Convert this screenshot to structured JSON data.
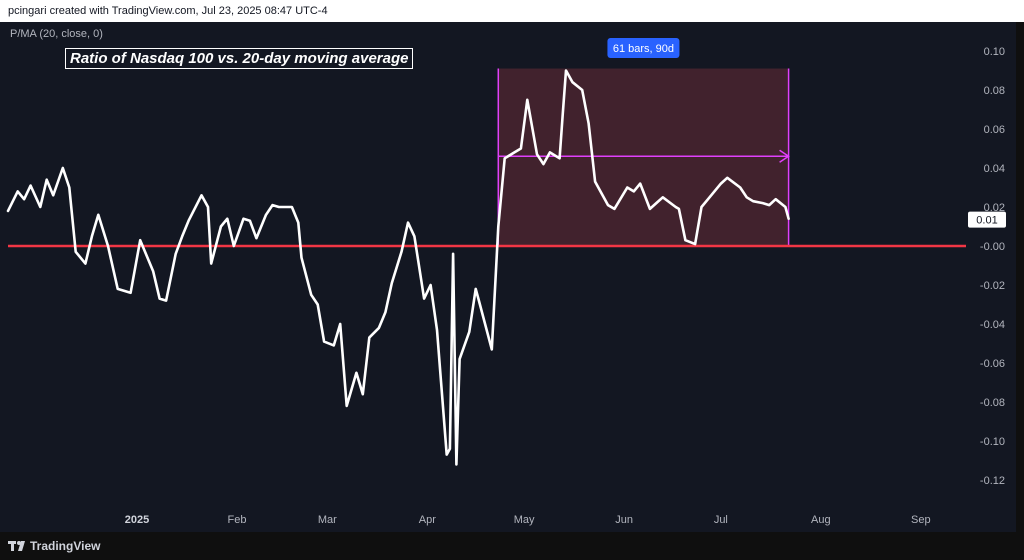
{
  "header": {
    "text": "pcingari created with TradingView.com, Jul 23, 2025 08:47 UTC-4"
  },
  "footer": {
    "brand": "TradingView"
  },
  "indicator": {
    "label": "P/MA (20, close, 0)"
  },
  "chart_data": {
    "type": "line",
    "title": "Ratio of Nasdaq 100 vs. 20-day moving average",
    "y_ticks": [
      "0.10",
      "0.08",
      "0.06",
      "0.04",
      "0.02",
      "-0.00",
      "-0.02",
      "-0.04",
      "-0.06",
      "-0.08",
      "-0.10",
      "-0.12"
    ],
    "y_tick_values": [
      0.1,
      0.08,
      0.06,
      0.04,
      0.02,
      0,
      -0.02,
      -0.04,
      -0.06,
      -0.08,
      -0.1,
      -0.12
    ],
    "x_ticks": [
      {
        "label": "2025",
        "date": "2025-01-01",
        "bold": true
      },
      {
        "label": "Feb",
        "date": "2025-02-01",
        "bold": false
      },
      {
        "label": "Mar",
        "date": "2025-03-01",
        "bold": false
      },
      {
        "label": "Apr",
        "date": "2025-04-01",
        "bold": false
      },
      {
        "label": "May",
        "date": "2025-05-01",
        "bold": false
      },
      {
        "label": "Jun",
        "date": "2025-06-01",
        "bold": false
      },
      {
        "label": "Jul",
        "date": "2025-07-01",
        "bold": false
      },
      {
        "label": "Aug",
        "date": "2025-08-01",
        "bold": false
      },
      {
        "label": "Sep",
        "date": "2025-09-01",
        "bold": false
      }
    ],
    "x_range": [
      "2024-11-22",
      "2025-09-15"
    ],
    "ylim": [
      -0.125,
      0.1
    ],
    "last_value_label": "0.01",
    "reference_line": {
      "value": 0,
      "color": "#f23645"
    },
    "measure": {
      "label": "61 bars, 90d",
      "start": "2025-04-23",
      "end": "2025-07-22",
      "top": 0.091,
      "bottom": 0,
      "arrow_y": 0.046,
      "line_color": "#e040fb",
      "fill_color": "#4a252f",
      "label_bg": "#2962ff"
    },
    "series": [
      {
        "line_color": "#ffffff",
        "x": [
          "2024-11-22",
          "2024-11-25",
          "2024-11-27",
          "2024-11-29",
          "2024-12-02",
          "2024-12-04",
          "2024-12-06",
          "2024-12-09",
          "2024-12-11",
          "2024-12-13",
          "2024-12-16",
          "2024-12-18",
          "2024-12-20",
          "2024-12-23",
          "2024-12-26",
          "2024-12-30",
          "2025-01-02",
          "2025-01-06",
          "2025-01-08",
          "2025-01-10",
          "2025-01-13",
          "2025-01-15",
          "2025-01-17",
          "2025-01-21",
          "2025-01-23",
          "2025-01-24",
          "2025-01-27",
          "2025-01-29",
          "2025-01-31",
          "2025-02-03",
          "2025-02-05",
          "2025-02-07",
          "2025-02-10",
          "2025-02-12",
          "2025-02-14",
          "2025-02-18",
          "2025-02-20",
          "2025-02-21",
          "2025-02-24",
          "2025-02-26",
          "2025-02-28",
          "2025-03-03",
          "2025-03-05",
          "2025-03-07",
          "2025-03-10",
          "2025-03-12",
          "2025-03-14",
          "2025-03-17",
          "2025-03-19",
          "2025-03-21",
          "2025-03-24",
          "2025-03-26",
          "2025-03-28",
          "2025-03-31",
          "2025-04-02",
          "2025-04-04",
          "2025-04-07",
          "2025-04-08",
          "2025-04-09",
          "2025-04-10",
          "2025-04-11",
          "2025-04-14",
          "2025-04-16",
          "2025-04-17",
          "2025-04-21",
          "2025-04-23",
          "2025-04-25",
          "2025-04-28",
          "2025-04-30",
          "2025-05-02",
          "2025-05-05",
          "2025-05-07",
          "2025-05-09",
          "2025-05-12",
          "2025-05-13",
          "2025-05-14",
          "2025-05-16",
          "2025-05-19",
          "2025-05-21",
          "2025-05-23",
          "2025-05-27",
          "2025-05-29",
          "2025-06-02",
          "2025-06-04",
          "2025-06-06",
          "2025-06-09",
          "2025-06-11",
          "2025-06-13",
          "2025-06-17",
          "2025-06-18",
          "2025-06-20",
          "2025-06-23",
          "2025-06-25",
          "2025-06-27",
          "2025-07-01",
          "2025-07-03",
          "2025-07-07",
          "2025-07-09",
          "2025-07-11",
          "2025-07-14",
          "2025-07-16",
          "2025-07-18",
          "2025-07-21",
          "2025-07-22"
        ],
        "values": [
          0.018,
          0.028,
          0.024,
          0.031,
          0.02,
          0.034,
          0.026,
          0.04,
          0.03,
          -0.003,
          -0.009,
          0.005,
          0.016,
          0.0,
          -0.022,
          -0.024,
          0.003,
          -0.013,
          -0.027,
          -0.028,
          -0.004,
          0.005,
          0.013,
          0.026,
          0.02,
          -0.009,
          0.01,
          0.014,
          0.0,
          0.014,
          0.013,
          0.004,
          0.016,
          0.021,
          0.02,
          0.02,
          0.012,
          -0.006,
          -0.025,
          -0.03,
          -0.049,
          -0.051,
          -0.04,
          -0.082,
          -0.065,
          -0.076,
          -0.047,
          -0.042,
          -0.034,
          -0.019,
          -0.003,
          0.012,
          0.005,
          -0.027,
          -0.02,
          -0.043,
          -0.107,
          -0.104,
          -0.004,
          -0.112,
          -0.058,
          -0.044,
          -0.022,
          -0.028,
          -0.053,
          0.01,
          0.045,
          0.048,
          0.05,
          0.075,
          0.047,
          0.042,
          0.048,
          0.045,
          0.068,
          0.09,
          0.084,
          0.08,
          0.063,
          0.033,
          0.021,
          0.019,
          0.03,
          0.028,
          0.032,
          0.019,
          0.022,
          0.025,
          0.02,
          0.019,
          0.003,
          0.001,
          0.02,
          0.024,
          0.032,
          0.035,
          0.03,
          0.025,
          0.023,
          0.022,
          0.021,
          0.024,
          0.02,
          0.014
        ]
      }
    ]
  }
}
